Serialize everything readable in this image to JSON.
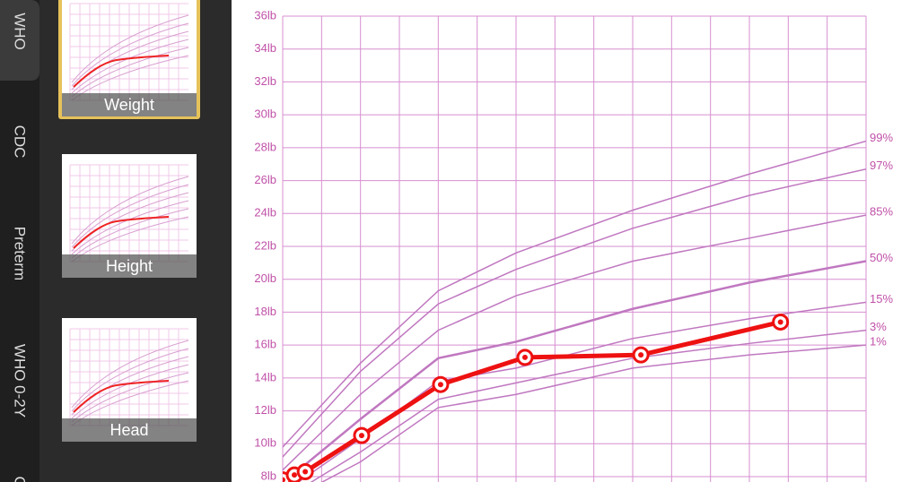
{
  "tabs": [
    "WHO",
    "CDC",
    "Preterm",
    "WHO 0-2Y",
    "CI"
  ],
  "thumbnails": [
    "Weight",
    "Height",
    "Head"
  ],
  "chart_data": {
    "type": "line",
    "xlim": [
      0,
      15
    ],
    "xticks": [
      0,
      1,
      2,
      3,
      4,
      5,
      6,
      7,
      8,
      9,
      10,
      11,
      12,
      13,
      14,
      15
    ],
    "ylim": [
      8,
      36
    ],
    "yticks": [
      {
        "value": 8,
        "label": "8lb"
      },
      {
        "value": 10,
        "label": "10lb"
      },
      {
        "value": 12,
        "label": "12lb"
      },
      {
        "value": 14,
        "label": "14lb"
      },
      {
        "value": 16,
        "label": "16lb"
      },
      {
        "value": 18,
        "label": "18lb"
      },
      {
        "value": 20,
        "label": "20lb"
      },
      {
        "value": 22,
        "label": "22lb"
      },
      {
        "value": 24,
        "label": "24lb"
      },
      {
        "value": 26,
        "label": "26lb"
      },
      {
        "value": 28,
        "label": "28lb"
      },
      {
        "value": 30,
        "label": "30lb"
      },
      {
        "value": 32,
        "label": "32lb"
      },
      {
        "value": 34,
        "label": "34lb"
      },
      {
        "value": 36,
        "label": "36lb"
      }
    ],
    "grid": true,
    "series": [
      {
        "color": "#ee1111",
        "x": [
          0,
          0.3,
          0.58,
          2.03,
          4.06,
          6.23,
          9.21,
          12.8
        ],
        "values": [
          7.8,
          8.1,
          8.3,
          10.5,
          13.6,
          15.25,
          15.4,
          17.4
        ]
      },
      {
        "name": "99%",
        "color": "#c078c0",
        "x": [
          0,
          2,
          4,
          6,
          9,
          12,
          15
        ],
        "values": [
          9.8,
          14.9,
          19.3,
          21.6,
          24.2,
          26.4,
          28.4
        ]
      },
      {
        "name": "97%",
        "color": "#c078c0",
        "x": [
          0,
          2,
          4,
          6,
          9,
          12,
          15
        ],
        "values": [
          9.2,
          14.4,
          18.5,
          20.6,
          23.1,
          25.1,
          26.7
        ]
      },
      {
        "name": "85%",
        "color": "#c078c0",
        "x": [
          0,
          2,
          4,
          6,
          9,
          12,
          15
        ],
        "values": [
          8.4,
          13.0,
          16.9,
          19.0,
          21.1,
          22.5,
          23.9
        ]
      },
      {
        "name": "50%",
        "color": "#c078c0",
        "x": [
          0,
          2,
          4,
          6,
          9,
          12,
          15
        ],
        "values": [
          7.6,
          11.5,
          15.2,
          16.2,
          18.2,
          19.8,
          21.1
        ]
      },
      {
        "name": "15%",
        "color": "#c078c0",
        "x": [
          0,
          2,
          4,
          6,
          9,
          12,
          15
        ],
        "values": [
          7.0,
          10.3,
          13.8,
          14.6,
          16.4,
          17.6,
          18.6
        ]
      },
      {
        "name": "3%",
        "color": "#c078c0",
        "x": [
          0,
          2,
          4,
          6,
          9,
          12,
          15
        ],
        "values": [
          6.6,
          9.5,
          12.7,
          13.7,
          15.2,
          16.1,
          16.9
        ]
      },
      {
        "name": "1%",
        "color": "#c078c0",
        "x": [
          0,
          2,
          4,
          6,
          9,
          12,
          15
        ],
        "values": [
          6.4,
          8.9,
          12.2,
          13.0,
          14.6,
          15.4,
          16.0
        ]
      }
    ]
  }
}
